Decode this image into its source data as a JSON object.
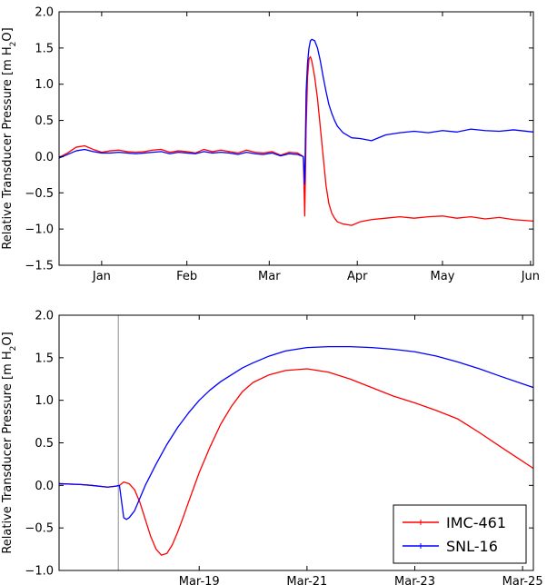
{
  "chart_data": [
    {
      "type": "line",
      "ylabel": "Relative Transducer Pressure [m H2O]",
      "ylabel_parts": {
        "prefix": "Relative Transducer Pressure [m H",
        "sub": "2",
        "suffix": "O]"
      },
      "xlim": [
        0,
        167
      ],
      "ylim": [
        -1.5,
        2.0
      ],
      "yticks": [
        -1.5,
        -1.0,
        -0.5,
        0.0,
        0.5,
        1.0,
        1.5,
        2.0
      ],
      "ytick_labels": [
        "−1.5",
        "−1.0",
        "−0.5",
        "0.0",
        "0.5",
        "1.0",
        "1.5",
        "2.0"
      ],
      "xticks": [
        15,
        45,
        74,
        105,
        135,
        166
      ],
      "xtick_labels": [
        "Jan",
        "Feb",
        "Mar",
        "Apr",
        "May",
        "Jun"
      ],
      "series": [
        {
          "name": "IMC-461",
          "color": "#ff0000",
          "x": [
            0,
            3,
            6,
            9,
            12,
            15,
            18,
            21,
            24,
            27,
            30,
            33,
            36,
            39,
            42,
            45,
            48,
            51,
            54,
            57,
            60,
            63,
            66,
            69,
            72,
            75,
            78,
            81,
            84,
            86,
            86.5,
            87,
            87.5,
            88,
            88.5,
            89,
            90,
            91,
            92,
            93,
            94,
            95,
            96,
            97,
            98,
            100,
            103,
            106,
            110,
            115,
            120,
            125,
            130,
            135,
            140,
            145,
            150,
            155,
            160,
            167
          ],
          "y": [
            -0.01,
            0.05,
            0.13,
            0.15,
            0.1,
            0.06,
            0.08,
            0.09,
            0.07,
            0.06,
            0.07,
            0.09,
            0.1,
            0.06,
            0.08,
            0.07,
            0.05,
            0.1,
            0.07,
            0.09,
            0.07,
            0.05,
            0.09,
            0.06,
            0.05,
            0.07,
            0.02,
            0.06,
            0.05,
            0.0,
            -0.82,
            0.4,
            1.1,
            1.35,
            1.38,
            1.32,
            1.1,
            0.8,
            0.4,
            0.0,
            -0.4,
            -0.65,
            -0.78,
            -0.85,
            -0.9,
            -0.93,
            -0.95,
            -0.9,
            -0.87,
            -0.85,
            -0.83,
            -0.85,
            -0.83,
            -0.82,
            -0.85,
            -0.83,
            -0.86,
            -0.84,
            -0.87,
            -0.89
          ]
        },
        {
          "name": "SNL-16",
          "color": "#0000ff",
          "x": [
            0,
            3,
            6,
            9,
            12,
            15,
            18,
            21,
            24,
            27,
            30,
            33,
            36,
            39,
            42,
            45,
            48,
            51,
            54,
            57,
            60,
            63,
            66,
            69,
            72,
            75,
            78,
            81,
            84,
            86,
            86.5,
            87,
            87.5,
            88,
            88.5,
            89,
            90,
            91,
            92,
            93,
            94,
            95,
            96,
            97,
            98,
            100,
            103,
            106,
            110,
            115,
            120,
            125,
            130,
            135,
            140,
            145,
            150,
            155,
            160,
            167
          ],
          "y": [
            -0.02,
            0.03,
            0.08,
            0.1,
            0.07,
            0.05,
            0.05,
            0.06,
            0.05,
            0.04,
            0.05,
            0.06,
            0.07,
            0.04,
            0.06,
            0.05,
            0.04,
            0.07,
            0.05,
            0.06,
            0.05,
            0.03,
            0.06,
            0.04,
            0.03,
            0.05,
            0.01,
            0.04,
            0.03,
            0.0,
            -0.38,
            0.9,
            1.3,
            1.5,
            1.6,
            1.62,
            1.6,
            1.5,
            1.32,
            1.1,
            0.9,
            0.72,
            0.6,
            0.5,
            0.42,
            0.33,
            0.26,
            0.25,
            0.22,
            0.3,
            0.33,
            0.35,
            0.33,
            0.36,
            0.34,
            0.38,
            0.36,
            0.35,
            0.37,
            0.34
          ]
        }
      ]
    },
    {
      "type": "line",
      "ylabel": "Relative Transducer Pressure [m H2O]",
      "ylabel_parts": {
        "prefix": "Relative Transducer Pressure [m H",
        "sub": "2",
        "suffix": "O]"
      },
      "xlim": [
        16.4,
        25.2
      ],
      "ylim": [
        -1.0,
        2.0
      ],
      "yticks": [
        -1.0,
        -0.5,
        0.0,
        0.5,
        1.0,
        1.5,
        2.0
      ],
      "ytick_labels": [
        "−1.0",
        "−0.5",
        "0.0",
        "0.5",
        "1.0",
        "1.5",
        "2.0"
      ],
      "xticks": [
        19,
        21,
        23,
        25
      ],
      "xtick_labels": [
        "Mar-19",
        "Mar-21",
        "Mar-23",
        "Mar-25"
      ],
      "vline": 17.5,
      "legend_position": "lower-right",
      "series": [
        {
          "name": "IMC-461",
          "color": "#ff0000",
          "x": [
            16.4,
            16.8,
            17.0,
            17.3,
            17.45,
            17.52,
            17.6,
            17.7,
            17.8,
            17.9,
            18.0,
            18.1,
            18.2,
            18.3,
            18.4,
            18.5,
            18.6,
            18.7,
            18.8,
            19.0,
            19.2,
            19.4,
            19.6,
            19.8,
            20.0,
            20.3,
            20.6,
            21.0,
            21.4,
            21.8,
            22.2,
            22.6,
            23.0,
            23.4,
            23.8,
            24.2,
            24.6,
            25.2
          ],
          "y": [
            0.02,
            0.01,
            0.0,
            -0.02,
            -0.01,
            0.0,
            0.04,
            0.02,
            -0.05,
            -0.2,
            -0.4,
            -0.6,
            -0.75,
            -0.82,
            -0.8,
            -0.7,
            -0.55,
            -0.38,
            -0.2,
            0.15,
            0.45,
            0.72,
            0.93,
            1.1,
            1.21,
            1.3,
            1.35,
            1.37,
            1.33,
            1.25,
            1.15,
            1.05,
            0.97,
            0.88,
            0.78,
            0.62,
            0.45,
            0.2
          ]
        },
        {
          "name": "SNL-16",
          "color": "#0000ff",
          "x": [
            16.4,
            16.8,
            17.0,
            17.3,
            17.45,
            17.52,
            17.6,
            17.65,
            17.7,
            17.8,
            17.9,
            18.0,
            18.2,
            18.4,
            18.6,
            18.8,
            19.0,
            19.2,
            19.4,
            19.6,
            19.8,
            20.0,
            20.3,
            20.6,
            21.0,
            21.4,
            21.8,
            22.2,
            22.6,
            23.0,
            23.4,
            23.8,
            24.2,
            24.6,
            25.2
          ],
          "y": [
            0.02,
            0.01,
            0.0,
            -0.02,
            -0.01,
            0.0,
            -0.38,
            -0.4,
            -0.38,
            -0.3,
            -0.15,
            0.0,
            0.25,
            0.48,
            0.68,
            0.85,
            1.0,
            1.12,
            1.22,
            1.3,
            1.38,
            1.44,
            1.52,
            1.58,
            1.62,
            1.63,
            1.63,
            1.62,
            1.6,
            1.57,
            1.52,
            1.45,
            1.37,
            1.28,
            1.15
          ]
        }
      ]
    }
  ]
}
